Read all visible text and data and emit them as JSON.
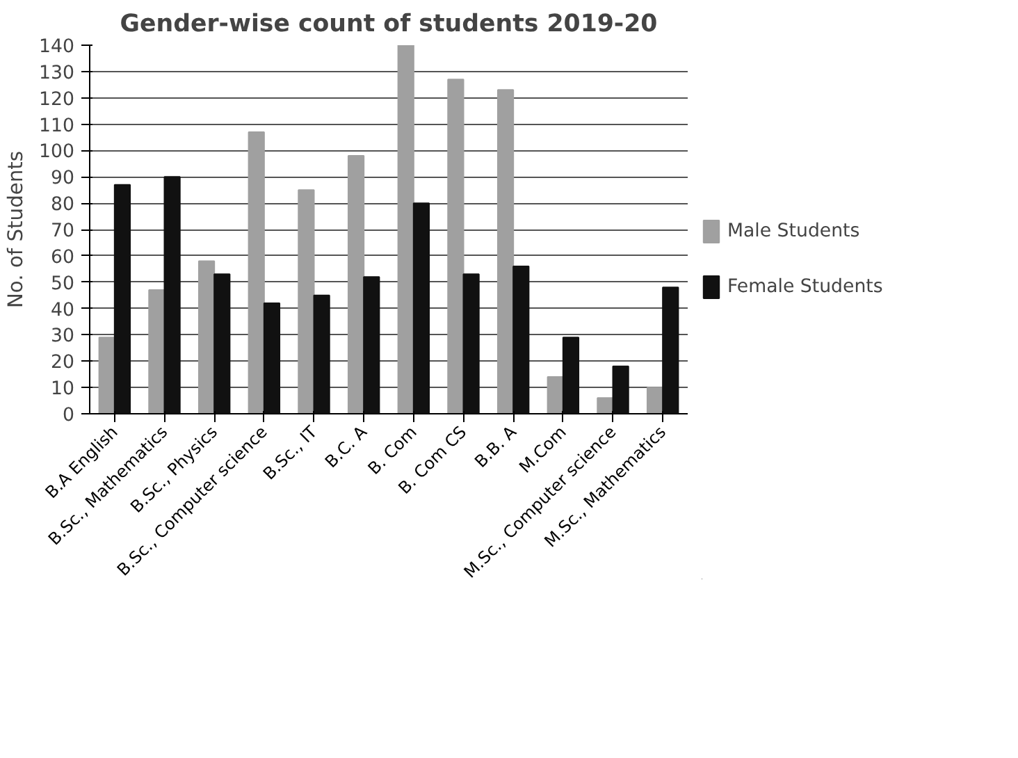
{
  "chart_data": {
    "type": "bar",
    "title": "Gender-wise count of students 2019-20",
    "ylabel": "No. of Students",
    "categories": [
      "B.A English",
      "B.Sc., Mathematics",
      "B.Sc., Physics",
      "B.Sc., Computer science",
      "B.Sc., IT",
      "B.C. A",
      "B. Com",
      "B. Com CS",
      "B.B. A",
      "M.Com",
      "M.Sc., Computer science",
      "M.Sc., Mathematics"
    ],
    "series": [
      {
        "name": "Male Students",
        "color": "#a0a0a0",
        "values": [
          29,
          47,
          58,
          107,
          85,
          98,
          140,
          127,
          123,
          14,
          6,
          10
        ]
      },
      {
        "name": "Female Students",
        "color": "#111111",
        "values": [
          87,
          90,
          53,
          42,
          45,
          52,
          80,
          53,
          56,
          29,
          18,
          48
        ]
      }
    ],
    "ylim": [
      0,
      140
    ],
    "yticks": [
      0,
      10,
      20,
      30,
      40,
      50,
      60,
      70,
      80,
      90,
      100,
      110,
      120,
      130,
      140
    ],
    "grid": "y",
    "legend": "right"
  }
}
